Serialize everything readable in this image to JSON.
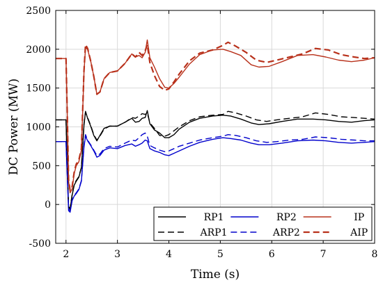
{
  "chart_data": {
    "type": "line",
    "xlabel": "Time (s)",
    "ylabel": "DC Power (MW)",
    "xlim": [
      1.8,
      8
    ],
    "ylim": [
      -500,
      2500
    ],
    "xticks": [
      2,
      3,
      4,
      5,
      6,
      7,
      8
    ],
    "yticks": [
      -500,
      0,
      500,
      1000,
      1500,
      2000,
      2500
    ],
    "grid": true,
    "legend_position": "bottom-right",
    "series": [
      {
        "name": "RP1",
        "color": "#000000",
        "style": "solid",
        "points": [
          [
            1.8,
            1090
          ],
          [
            2.0,
            1090
          ],
          [
            2.02,
            600
          ],
          [
            2.05,
            -40
          ],
          [
            2.08,
            -60
          ],
          [
            2.12,
            120
          ],
          [
            2.16,
            250
          ],
          [
            2.2,
            300
          ],
          [
            2.25,
            350
          ],
          [
            2.3,
            470
          ],
          [
            2.35,
            1020
          ],
          [
            2.38,
            1200
          ],
          [
            2.42,
            1110
          ],
          [
            2.48,
            1010
          ],
          [
            2.54,
            890
          ],
          [
            2.6,
            820
          ],
          [
            2.66,
            890
          ],
          [
            2.74,
            980
          ],
          [
            2.85,
            1010
          ],
          [
            3.0,
            1010
          ],
          [
            3.15,
            1060
          ],
          [
            3.28,
            1110
          ],
          [
            3.35,
            1060
          ],
          [
            3.42,
            1070
          ],
          [
            3.48,
            1110
          ],
          [
            3.54,
            1120
          ],
          [
            3.58,
            1210
          ],
          [
            3.63,
            1040
          ],
          [
            3.72,
            960
          ],
          [
            3.82,
            920
          ],
          [
            3.92,
            860
          ],
          [
            4.0,
            860
          ],
          [
            4.1,
            900
          ],
          [
            4.2,
            970
          ],
          [
            4.4,
            1060
          ],
          [
            4.6,
            1110
          ],
          [
            4.85,
            1140
          ],
          [
            5.05,
            1150
          ],
          [
            5.2,
            1140
          ],
          [
            5.4,
            1100
          ],
          [
            5.6,
            1050
          ],
          [
            5.75,
            1030
          ],
          [
            5.95,
            1040
          ],
          [
            6.2,
            1070
          ],
          [
            6.5,
            1100
          ],
          [
            6.8,
            1100
          ],
          [
            7.05,
            1090
          ],
          [
            7.3,
            1070
          ],
          [
            7.55,
            1060
          ],
          [
            7.8,
            1080
          ],
          [
            8.0,
            1090
          ]
        ]
      },
      {
        "name": "RP2",
        "color": "#0000cc",
        "style": "solid",
        "points": [
          [
            1.8,
            810
          ],
          [
            2.0,
            810
          ],
          [
            2.02,
            450
          ],
          [
            2.05,
            -80
          ],
          [
            2.08,
            -100
          ],
          [
            2.12,
            50
          ],
          [
            2.16,
            110
          ],
          [
            2.2,
            140
          ],
          [
            2.25,
            190
          ],
          [
            2.3,
            300
          ],
          [
            2.35,
            740
          ],
          [
            2.38,
            880
          ],
          [
            2.42,
            820
          ],
          [
            2.48,
            760
          ],
          [
            2.54,
            690
          ],
          [
            2.6,
            610
          ],
          [
            2.66,
            630
          ],
          [
            2.74,
            700
          ],
          [
            2.85,
            730
          ],
          [
            3.0,
            720
          ],
          [
            3.15,
            760
          ],
          [
            3.28,
            780
          ],
          [
            3.35,
            750
          ],
          [
            3.42,
            770
          ],
          [
            3.48,
            790
          ],
          [
            3.54,
            830
          ],
          [
            3.58,
            820
          ],
          [
            3.63,
            720
          ],
          [
            3.72,
            690
          ],
          [
            3.82,
            670
          ],
          [
            3.92,
            640
          ],
          [
            4.0,
            630
          ],
          [
            4.1,
            660
          ],
          [
            4.2,
            690
          ],
          [
            4.4,
            750
          ],
          [
            4.6,
            800
          ],
          [
            4.85,
            840
          ],
          [
            5.05,
            860
          ],
          [
            5.2,
            850
          ],
          [
            5.4,
            830
          ],
          [
            5.6,
            790
          ],
          [
            5.75,
            770
          ],
          [
            5.95,
            770
          ],
          [
            6.2,
            790
          ],
          [
            6.5,
            820
          ],
          [
            6.8,
            830
          ],
          [
            7.05,
            820
          ],
          [
            7.3,
            800
          ],
          [
            7.55,
            790
          ],
          [
            7.8,
            800
          ],
          [
            8.0,
            810
          ]
        ]
      },
      {
        "name": "IP",
        "color": "#b8301a",
        "style": "solid",
        "points": [
          [
            1.8,
            1880
          ],
          [
            2.0,
            1880
          ],
          [
            2.02,
            1300
          ],
          [
            2.05,
            300
          ],
          [
            2.08,
            150
          ],
          [
            2.12,
            200
          ],
          [
            2.16,
            400
          ],
          [
            2.2,
            500
          ],
          [
            2.25,
            550
          ],
          [
            2.3,
            700
          ],
          [
            2.35,
            1700
          ],
          [
            2.38,
            2020
          ],
          [
            2.42,
            2000
          ],
          [
            2.48,
            1850
          ],
          [
            2.54,
            1650
          ],
          [
            2.6,
            1420
          ],
          [
            2.66,
            1450
          ],
          [
            2.74,
            1620
          ],
          [
            2.85,
            1700
          ],
          [
            3.0,
            1720
          ],
          [
            3.15,
            1820
          ],
          [
            3.28,
            1940
          ],
          [
            3.35,
            1900
          ],
          [
            3.42,
            1920
          ],
          [
            3.48,
            1890
          ],
          [
            3.54,
            1960
          ],
          [
            3.58,
            2120
          ],
          [
            3.63,
            1890
          ],
          [
            3.72,
            1770
          ],
          [
            3.82,
            1620
          ],
          [
            3.92,
            1510
          ],
          [
            4.0,
            1500
          ],
          [
            4.1,
            1560
          ],
          [
            4.2,
            1640
          ],
          [
            4.4,
            1810
          ],
          [
            4.6,
            1930
          ],
          [
            4.85,
            1990
          ],
          [
            5.05,
            2000
          ],
          [
            5.2,
            1970
          ],
          [
            5.4,
            1920
          ],
          [
            5.6,
            1800
          ],
          [
            5.75,
            1770
          ],
          [
            5.95,
            1780
          ],
          [
            6.2,
            1840
          ],
          [
            6.5,
            1920
          ],
          [
            6.8,
            1930
          ],
          [
            7.05,
            1900
          ],
          [
            7.3,
            1860
          ],
          [
            7.55,
            1840
          ],
          [
            7.8,
            1860
          ],
          [
            8.0,
            1890
          ]
        ]
      },
      {
        "name": "ARP1",
        "color": "#000000",
        "style": "dashed",
        "points": [
          [
            1.8,
            1090
          ],
          [
            2.0,
            1090
          ],
          [
            2.02,
            600
          ],
          [
            2.05,
            -30
          ],
          [
            2.08,
            -50
          ],
          [
            2.12,
            130
          ],
          [
            2.16,
            260
          ],
          [
            2.2,
            310
          ],
          [
            2.25,
            360
          ],
          [
            2.3,
            480
          ],
          [
            2.35,
            1040
          ],
          [
            2.38,
            1190
          ],
          [
            2.42,
            1120
          ],
          [
            2.48,
            1020
          ],
          [
            2.54,
            900
          ],
          [
            2.6,
            830
          ],
          [
            2.66,
            880
          ],
          [
            2.74,
            970
          ],
          [
            2.85,
            1010
          ],
          [
            3.0,
            1010
          ],
          [
            3.15,
            1060
          ],
          [
            3.28,
            1120
          ],
          [
            3.35,
            1110
          ],
          [
            3.42,
            1140
          ],
          [
            3.48,
            1170
          ],
          [
            3.54,
            1160
          ],
          [
            3.58,
            1180
          ],
          [
            3.63,
            1050
          ],
          [
            3.72,
            980
          ],
          [
            3.82,
            890
          ],
          [
            3.92,
            880
          ],
          [
            4.0,
            900
          ],
          [
            4.1,
            950
          ],
          [
            4.2,
            1000
          ],
          [
            4.4,
            1080
          ],
          [
            4.6,
            1130
          ],
          [
            4.85,
            1150
          ],
          [
            5.05,
            1160
          ],
          [
            5.15,
            1200
          ],
          [
            5.3,
            1180
          ],
          [
            5.5,
            1140
          ],
          [
            5.7,
            1090
          ],
          [
            5.9,
            1070
          ],
          [
            6.1,
            1090
          ],
          [
            6.35,
            1110
          ],
          [
            6.6,
            1130
          ],
          [
            6.85,
            1180
          ],
          [
            7.1,
            1160
          ],
          [
            7.35,
            1130
          ],
          [
            7.6,
            1120
          ],
          [
            7.8,
            1110
          ],
          [
            8.0,
            1100
          ]
        ]
      },
      {
        "name": "ARP2",
        "color": "#0000cc",
        "style": "dashed",
        "points": [
          [
            1.8,
            810
          ],
          [
            2.0,
            810
          ],
          [
            2.02,
            450
          ],
          [
            2.05,
            -60
          ],
          [
            2.08,
            -80
          ],
          [
            2.12,
            60
          ],
          [
            2.16,
            120
          ],
          [
            2.2,
            150
          ],
          [
            2.25,
            200
          ],
          [
            2.3,
            310
          ],
          [
            2.35,
            760
          ],
          [
            2.38,
            900
          ],
          [
            2.42,
            830
          ],
          [
            2.48,
            770
          ],
          [
            2.54,
            700
          ],
          [
            2.6,
            630
          ],
          [
            2.66,
            650
          ],
          [
            2.74,
            720
          ],
          [
            2.85,
            750
          ],
          [
            3.0,
            740
          ],
          [
            3.15,
            790
          ],
          [
            3.28,
            830
          ],
          [
            3.35,
            820
          ],
          [
            3.42,
            860
          ],
          [
            3.48,
            900
          ],
          [
            3.54,
            920
          ],
          [
            3.58,
            880
          ],
          [
            3.63,
            760
          ],
          [
            3.72,
            730
          ],
          [
            3.82,
            700
          ],
          [
            3.92,
            680
          ],
          [
            4.0,
            690
          ],
          [
            4.1,
            720
          ],
          [
            4.2,
            750
          ],
          [
            4.4,
            790
          ],
          [
            4.6,
            830
          ],
          [
            4.85,
            860
          ],
          [
            5.05,
            880
          ],
          [
            5.15,
            900
          ],
          [
            5.3,
            890
          ],
          [
            5.5,
            860
          ],
          [
            5.7,
            820
          ],
          [
            5.9,
            800
          ],
          [
            6.1,
            810
          ],
          [
            6.35,
            830
          ],
          [
            6.6,
            840
          ],
          [
            6.85,
            870
          ],
          [
            7.1,
            860
          ],
          [
            7.35,
            840
          ],
          [
            7.6,
            830
          ],
          [
            7.8,
            820
          ],
          [
            8.0,
            820
          ]
        ]
      },
      {
        "name": "AIP",
        "color": "#b8301a",
        "style": "dashed",
        "points": [
          [
            1.8,
            1880
          ],
          [
            2.0,
            1880
          ],
          [
            2.02,
            1300
          ],
          [
            2.05,
            320
          ],
          [
            2.08,
            180
          ],
          [
            2.12,
            230
          ],
          [
            2.16,
            420
          ],
          [
            2.2,
            520
          ],
          [
            2.25,
            570
          ],
          [
            2.3,
            720
          ],
          [
            2.35,
            1720
          ],
          [
            2.38,
            2060
          ],
          [
            2.42,
            2010
          ],
          [
            2.48,
            1850
          ],
          [
            2.54,
            1650
          ],
          [
            2.6,
            1420
          ],
          [
            2.66,
            1450
          ],
          [
            2.74,
            1620
          ],
          [
            2.85,
            1700
          ],
          [
            3.0,
            1720
          ],
          [
            3.15,
            1820
          ],
          [
            3.28,
            1940
          ],
          [
            3.35,
            1900
          ],
          [
            3.42,
            1960
          ],
          [
            3.48,
            1920
          ],
          [
            3.54,
            1980
          ],
          [
            3.58,
            2060
          ],
          [
            3.63,
            1830
          ],
          [
            3.72,
            1660
          ],
          [
            3.82,
            1520
          ],
          [
            3.92,
            1470
          ],
          [
            4.0,
            1490
          ],
          [
            4.1,
            1580
          ],
          [
            4.2,
            1680
          ],
          [
            4.4,
            1850
          ],
          [
            4.6,
            1950
          ],
          [
            4.85,
            1990
          ],
          [
            5.05,
            2050
          ],
          [
            5.15,
            2090
          ],
          [
            5.3,
            2040
          ],
          [
            5.5,
            1960
          ],
          [
            5.7,
            1860
          ],
          [
            5.9,
            1830
          ],
          [
            6.1,
            1860
          ],
          [
            6.35,
            1900
          ],
          [
            6.6,
            1940
          ],
          [
            6.85,
            2010
          ],
          [
            7.1,
            1990
          ],
          [
            7.35,
            1930
          ],
          [
            7.6,
            1900
          ],
          [
            7.8,
            1880
          ],
          [
            8.0,
            1890
          ]
        ]
      }
    ]
  }
}
